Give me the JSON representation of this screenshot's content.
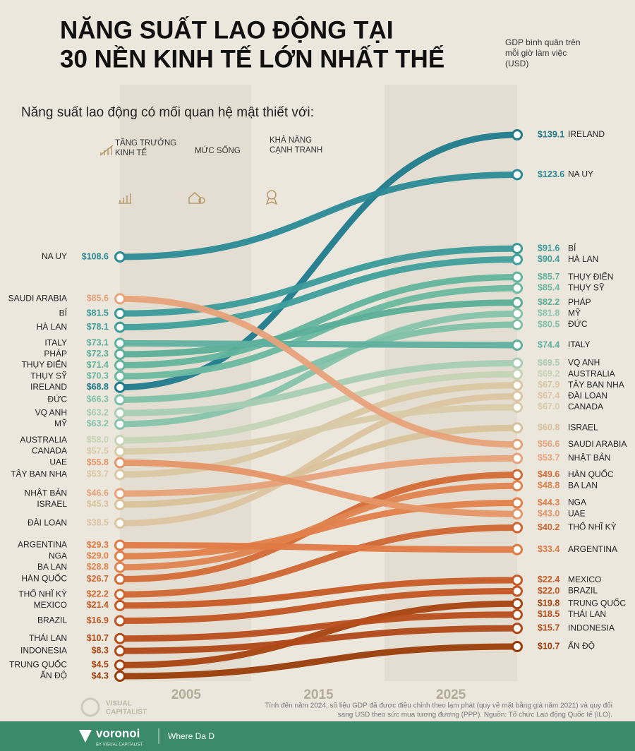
{
  "chart_data": {
    "type": "slope",
    "title": [
      "NĂNG SUẤT LAO ĐỘNG TẠI",
      "30 NỀN KINH TẾ LỚN NHẤT THẾ"
    ],
    "subtitle": [
      "GDP bình quân trên",
      "mỗi giờ làm việc",
      "(USD)"
    ],
    "annotation": "Năng suất lao động có mối quan hệ mật thiết với:",
    "drivers": [
      [
        "TĂNG TRƯỞNG",
        "KINH TẾ"
      ],
      [
        "MỨC SỐNG"
      ],
      [
        "KHẢ NĂNG",
        "CẠNH TRANH"
      ]
    ],
    "x": [
      2000,
      2030
    ],
    "xlim": [
      2000,
      2030
    ],
    "xticks": [
      2005,
      2015,
      2025
    ],
    "series": [
      {
        "name": "NA UY",
        "color": "#2a8a96",
        "values": [
          108.6,
          123.6
        ],
        "value_labels": [
          "$108.6",
          "$123.6"
        ]
      },
      {
        "name": "SAUDI ARABIA",
        "color": "#e8a27a",
        "values": [
          85.6,
          56.6
        ],
        "value_labels": [
          "$85.6",
          "$56.6"
        ]
      },
      {
        "name": "BỈ",
        "color": "#3a9a9a",
        "values": [
          81.5,
          91.6
        ],
        "value_labels": [
          "$81.5",
          "$91.6"
        ]
      },
      {
        "name": "HÀ LAN",
        "color": "#3f9f9c",
        "values": [
          78.1,
          90.4
        ],
        "value_labels": [
          "$78.1",
          "$90.4"
        ]
      },
      {
        "name": "ITALY",
        "color": "#5fb0a0",
        "values": [
          73.1,
          74.4
        ],
        "value_labels": [
          "$73.1",
          "$74.4"
        ]
      },
      {
        "name": "PHÁP",
        "color": "#5aae98",
        "values": [
          72.3,
          82.2
        ],
        "value_labels": [
          "$72.3",
          "$82.2"
        ]
      },
      {
        "name": "THỤY ĐIỂN",
        "color": "#62b49c",
        "values": [
          71.4,
          85.7
        ],
        "value_labels": [
          "$71.4",
          "$85.7"
        ]
      },
      {
        "name": "THỤY SỸ",
        "color": "#6ab8a0",
        "values": [
          70.3,
          85.4
        ],
        "value_labels": [
          "$70.3",
          "$85.4"
        ]
      },
      {
        "name": "IRELAND",
        "color": "#1f7a8c",
        "values": [
          68.8,
          139.1
        ],
        "value_labels": [
          "$68.8",
          "$139.1"
        ]
      },
      {
        "name": "ĐỨC",
        "color": "#7fc0a8",
        "values": [
          66.3,
          80.5
        ],
        "value_labels": [
          "$66.3",
          "$80.5"
        ]
      },
      {
        "name": "VQ ANH",
        "color": "#a8ccb4",
        "values": [
          63.2,
          69.5
        ],
        "value_labels": [
          "$63.2",
          "$69.5"
        ]
      },
      {
        "name": "MỸ",
        "color": "#86c3ab",
        "values": [
          63.2,
          81.8
        ],
        "value_labels": [
          "$63.2",
          "$81.8"
        ]
      },
      {
        "name": "AUSTRALIA",
        "color": "#c4d4b4",
        "values": [
          58.0,
          69.2
        ],
        "value_labels": [
          "$58.0",
          "$69.2"
        ]
      },
      {
        "name": "CANADA",
        "color": "#d8cba8",
        "values": [
          57.5,
          67.0
        ],
        "value_labels": [
          "$57.5",
          "$67.0"
        ]
      },
      {
        "name": "UAE",
        "color": "#e59566",
        "values": [
          55.8,
          43.0
        ],
        "value_labels": [
          "$55.8",
          "$43.0"
        ]
      },
      {
        "name": "TÂY BAN NHA",
        "color": "#dac7a2",
        "values": [
          53.7,
          67.9
        ],
        "value_labels": [
          "$53.7",
          "$67.9"
        ]
      },
      {
        "name": "NHẬT BẢN",
        "color": "#e8a27a",
        "values": [
          46.6,
          53.7
        ],
        "value_labels": [
          "$46.6",
          "$53.7"
        ]
      },
      {
        "name": "ISRAEL",
        "color": "#d8c29a",
        "values": [
          45.3,
          60.8
        ],
        "value_labels": [
          "$45.3",
          "$60.8"
        ]
      },
      {
        "name": "ĐÀI LOAN",
        "color": "#dcc4a0",
        "values": [
          38.5,
          67.4
        ],
        "value_labels": [
          "$38.5",
          "$67.4"
        ]
      },
      {
        "name": "ARGENTINA",
        "color": "#e07a45",
        "values": [
          29.3,
          33.4
        ],
        "value_labels": [
          "$29.3",
          "$33.4"
        ]
      },
      {
        "name": "NGA",
        "color": "#e27f4a",
        "values": [
          29.0,
          44.3
        ],
        "value_labels": [
          "$29.0",
          "$44.3"
        ]
      },
      {
        "name": "BA LAN",
        "color": "#e0844f",
        "values": [
          28.8,
          48.8
        ],
        "value_labels": [
          "$28.8",
          "$48.8"
        ]
      },
      {
        "name": "HÀN QUỐC",
        "color": "#d46a35",
        "values": [
          26.7,
          49.6
        ],
        "value_labels": [
          "$26.7",
          "$49.6"
        ]
      },
      {
        "name": "THỔ NHĨ KỲ",
        "color": "#d06632",
        "values": [
          22.2,
          40.2
        ],
        "value_labels": [
          "$22.2",
          "$40.2"
        ]
      },
      {
        "name": "MEXICO",
        "color": "#c75a25",
        "values": [
          21.4,
          22.4
        ],
        "value_labels": [
          "$21.4",
          "$22.4"
        ]
      },
      {
        "name": "BRAZIL",
        "color": "#c25522",
        "values": [
          16.9,
          22.0
        ],
        "value_labels": [
          "$16.9",
          "$22.0"
        ]
      },
      {
        "name": "THÁI LAN",
        "color": "#b84d1c",
        "values": [
          10.7,
          18.5
        ],
        "value_labels": [
          "$10.7",
          "$18.5"
        ]
      },
      {
        "name": "INDONESIA",
        "color": "#b04818",
        "values": [
          8.3,
          15.7
        ],
        "value_labels": [
          "$8.3",
          "$15.7"
        ]
      },
      {
        "name": "TRUNG QUỐC",
        "color": "#a8420f",
        "values": [
          4.5,
          19.8
        ],
        "value_labels": [
          "$4.5",
          "$19.8"
        ]
      },
      {
        "name": "ẤN ĐỘ",
        "color": "#9a3c0a",
        "values": [
          4.3,
          10.7
        ],
        "value_labels": [
          "$4.3",
          "$10.7"
        ]
      }
    ],
    "note": [
      "Tính đến năm 2024, số liệu GDP đã được điều chỉnh theo lạm phát (quy về mặt bằng giá năm 2021) và quy đổi",
      "sang USD theo sức mua tương đương (PPP). Nguồn: Tổ chức Lao động Quốc tế (ILO)."
    ],
    "brand": [
      "VISUAL",
      "CAPITALIST"
    ],
    "footer": {
      "logo": "voronoi",
      "by": "BY VISUAL CAPITALIST",
      "tagline": "Where Da D"
    }
  }
}
